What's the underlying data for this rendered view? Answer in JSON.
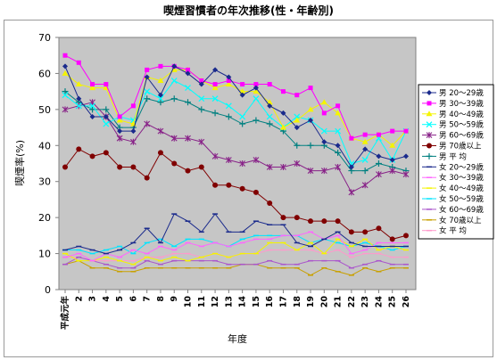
{
  "chart_data": {
    "type": "line",
    "title": "喫煙習慣者の年次推移(性・年齢別)",
    "xlabel": "年度",
    "ylabel": "喫煙率(%)",
    "ylim": [
      0,
      70
    ],
    "yticks": [
      0,
      10,
      20,
      30,
      40,
      50,
      60,
      70
    ],
    "categories": [
      "平成元年",
      "2",
      "3",
      "4",
      "5",
      "6",
      "7",
      "8",
      "9",
      "10",
      "11",
      "12",
      "13",
      "14",
      "15",
      "16",
      "17",
      "18",
      "19",
      "20",
      "21",
      "22",
      "23",
      "24",
      "25",
      "26"
    ],
    "grid": false,
    "legend_position": "right",
    "plot_background": "#c6c6c6",
    "series": [
      {
        "name": "男 20～29歳",
        "color": "#1a2a8c",
        "marker": "diamond",
        "values": [
          62,
          53,
          48,
          48,
          44,
          44,
          59,
          54,
          62,
          60,
          57,
          61,
          59,
          54,
          56,
          51,
          49,
          45,
          47,
          41,
          40,
          34,
          39,
          37,
          36,
          37
        ]
      },
      {
        "name": "男 30～39歳",
        "color": "#ff00ff",
        "marker": "square",
        "values": [
          65,
          63,
          57,
          57,
          48,
          51,
          61,
          62,
          62,
          61,
          58,
          57,
          58,
          57,
          57,
          57,
          55,
          54,
          56,
          49,
          51,
          42,
          43,
          43,
          44,
          44
        ]
      },
      {
        "name": "男 40～49歳",
        "color": "#f4f400",
        "marker": "triangle",
        "values": [
          60,
          57,
          56,
          56,
          47,
          46,
          59,
          58,
          61,
          61,
          58,
          56,
          57,
          55,
          55,
          52,
          45,
          47,
          50,
          52,
          49,
          42,
          41,
          43,
          40,
          44
        ]
      },
      {
        "name": "男 50～59歳",
        "color": "#00ffff",
        "marker": "x",
        "values": [
          54,
          51,
          51,
          46,
          48,
          47,
          55,
          53,
          58,
          56,
          53,
          53,
          51,
          48,
          53,
          48,
          45,
          48,
          47,
          44,
          44,
          35,
          36,
          42,
          36,
          44
        ]
      },
      {
        "name": "男 60～69歳",
        "color": "#882288",
        "marker": "asterisk",
        "values": [
          50,
          51,
          52,
          48,
          42,
          41,
          46,
          44,
          42,
          42,
          41,
          37,
          36,
          35,
          36,
          34,
          34,
          35,
          33,
          33,
          34,
          27,
          29,
          32,
          33,
          32
        ]
      },
      {
        "name": "男 70歳以上",
        "color": "#800000",
        "marker": "circle",
        "values": [
          34,
          39,
          37,
          38,
          34,
          34,
          31,
          38,
          35,
          33,
          34,
          29,
          29,
          28,
          27,
          24,
          20,
          20,
          19,
          19,
          19,
          16,
          16,
          17,
          14,
          15
        ]
      },
      {
        "name": "男 平 均",
        "color": "#008080",
        "marker": "plus",
        "values": [
          55,
          52,
          50,
          50,
          45,
          45,
          53,
          52,
          53,
          52,
          50,
          49,
          48,
          46,
          47,
          46,
          44,
          40,
          40,
          40,
          38,
          33,
          33,
          35,
          34,
          33
        ]
      },
      {
        "name": "女 20～29歳",
        "color": "#1a2a8c",
        "marker": "dash",
        "values": [
          11,
          12,
          11,
          10,
          11,
          13,
          17,
          13,
          21,
          19,
          16,
          21,
          16,
          16,
          19,
          18,
          18,
          13,
          12,
          14,
          16,
          13,
          12,
          12,
          12,
          12
        ]
      },
      {
        "name": "女 30～39歳",
        "color": "#ff66ff",
        "marker": "dash",
        "values": [
          9,
          10,
          8,
          10,
          9,
          11,
          10,
          12,
          11,
          13,
          12,
          13,
          12,
          13,
          14,
          14,
          15,
          15,
          16,
          14,
          15,
          10,
          11,
          13,
          13,
          13
        ]
      },
      {
        "name": "女 40～49歳",
        "color": "#f4f400",
        "marker": "dash",
        "values": [
          10,
          8,
          8,
          9,
          8,
          7,
          9,
          8,
          9,
          8,
          9,
          10,
          9,
          10,
          10,
          13,
          13,
          11,
          13,
          10,
          14,
          12,
          14,
          11,
          12,
          11
        ]
      },
      {
        "name": "女 50～59歳",
        "color": "#00e5ff",
        "marker": "dash",
        "values": [
          11,
          11,
          10,
          11,
          12,
          10,
          13,
          14,
          12,
          14,
          14,
          13,
          12,
          14,
          15,
          15,
          15,
          15,
          13,
          14,
          13,
          12,
          13,
          12,
          11,
          12
        ]
      },
      {
        "name": "女 60～69歳",
        "color": "#aa55cc",
        "marker": "dash",
        "values": [
          7,
          9,
          8,
          7,
          6,
          6,
          8,
          7,
          8,
          8,
          8,
          8,
          7,
          7,
          7,
          8,
          7,
          7,
          8,
          8,
          8,
          6,
          7,
          8,
          7,
          7
        ]
      },
      {
        "name": "女 70歳以上",
        "color": "#c8a000",
        "marker": "dash",
        "values": [
          7,
          8,
          6,
          6,
          5,
          5,
          6,
          6,
          6,
          6,
          6,
          6,
          6,
          7,
          7,
          6,
          6,
          6,
          4,
          6,
          5,
          4,
          6,
          5,
          6,
          6
        ]
      },
      {
        "name": "女 平 均",
        "color": "#ff99cc",
        "marker": "dash",
        "values": [
          9,
          9,
          8,
          8,
          8,
          8,
          9,
          9,
          10,
          10,
          9,
          10,
          9,
          10,
          10,
          11,
          11,
          11,
          11,
          10,
          11,
          9,
          10,
          10,
          9,
          9
        ]
      }
    ]
  }
}
